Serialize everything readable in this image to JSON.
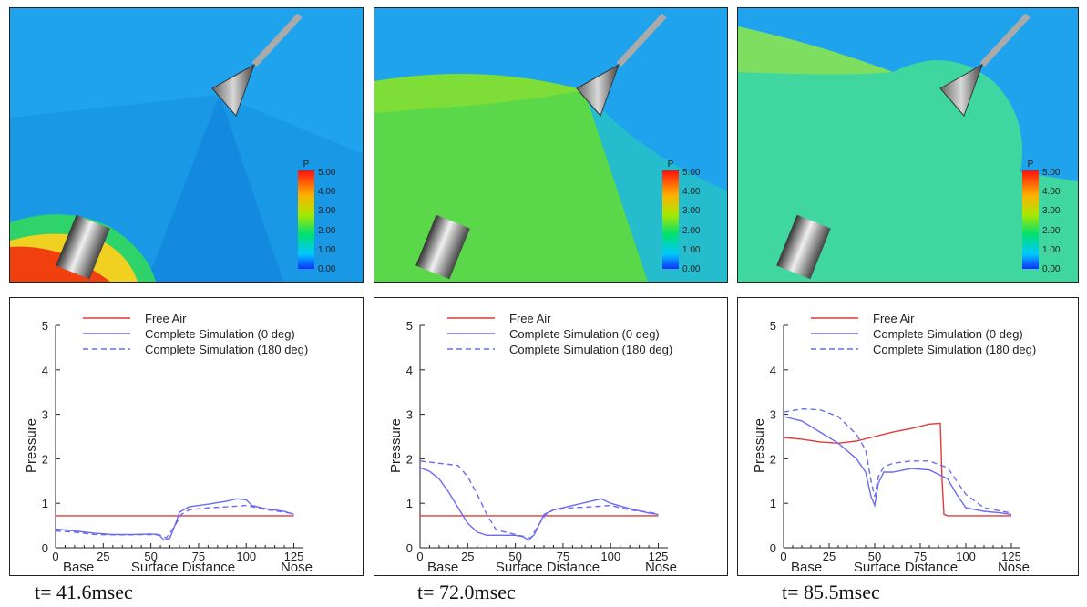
{
  "contours": [
    {
      "colorbar_title": "P",
      "colorbar_ticks": [
        "5.00",
        "4.00",
        "3.00",
        "2.00",
        "1.00",
        "0.00"
      ]
    },
    {
      "colorbar_title": "P",
      "colorbar_ticks": [
        "5.00",
        "4.00",
        "3.00",
        "2.00",
        "1.00",
        "0.00"
      ]
    },
    {
      "colorbar_title": "P",
      "colorbar_ticks": [
        "5.00",
        "4.00",
        "3.00",
        "2.00",
        "1.00",
        "0.00"
      ]
    }
  ],
  "captions": [
    "t= 41.6msec",
    "t= 72.0msec",
    "t= 85.5msec"
  ],
  "colors": {
    "free_air": "#e03a3a",
    "simulation": "#6b6bf0"
  },
  "chart_data": [
    {
      "type": "line",
      "title": "",
      "xlabel": "Surface Distance",
      "ylabel": "Pressure",
      "xlim": [
        0,
        130
      ],
      "ylim": [
        0,
        5
      ],
      "xticks": [
        0,
        25,
        50,
        75,
        100,
        125
      ],
      "yticks": [
        0,
        1,
        2,
        3,
        4,
        5
      ],
      "x_end_labels": [
        "Base",
        "Nose"
      ],
      "legend": "top-left",
      "series": [
        {
          "name": "Free Air",
          "style": "solid",
          "x": [
            0,
            125
          ],
          "y": [
            0.72,
            0.72
          ]
        },
        {
          "name": "Complete Simulation (0 deg)",
          "style": "solid",
          "x": [
            0,
            10,
            20,
            30,
            40,
            50,
            54,
            57,
            60,
            63,
            65,
            70,
            80,
            90,
            95,
            100,
            103,
            110,
            120,
            125
          ],
          "y": [
            0.42,
            0.38,
            0.33,
            0.3,
            0.3,
            0.31,
            0.3,
            0.17,
            0.22,
            0.55,
            0.8,
            0.92,
            0.98,
            1.05,
            1.1,
            1.08,
            0.95,
            0.88,
            0.82,
            0.75
          ]
        },
        {
          "name": "Complete Simulation (180 deg)",
          "style": "dashed",
          "x": [
            0,
            10,
            20,
            30,
            40,
            50,
            55,
            58,
            62,
            66,
            70,
            80,
            90,
            100,
            110,
            120,
            125
          ],
          "y": [
            0.38,
            0.35,
            0.3,
            0.29,
            0.29,
            0.3,
            0.28,
            0.22,
            0.45,
            0.75,
            0.85,
            0.9,
            0.92,
            0.95,
            0.86,
            0.8,
            0.76
          ]
        }
      ]
    },
    {
      "type": "line",
      "title": "",
      "xlabel": "Surface Distance",
      "ylabel": "Pressure",
      "xlim": [
        0,
        130
      ],
      "ylim": [
        0,
        5
      ],
      "xticks": [
        0,
        25,
        50,
        75,
        100,
        125
      ],
      "yticks": [
        0,
        1,
        2,
        3,
        4,
        5
      ],
      "x_end_labels": [
        "Base",
        "Nose"
      ],
      "legend": "top-left",
      "series": [
        {
          "name": "Free Air",
          "style": "solid",
          "x": [
            0,
            125
          ],
          "y": [
            0.72,
            0.72
          ]
        },
        {
          "name": "Complete Simulation (0 deg)",
          "style": "solid",
          "x": [
            0,
            5,
            10,
            15,
            20,
            25,
            30,
            35,
            40,
            50,
            54,
            57,
            60,
            65,
            70,
            80,
            90,
            95,
            100,
            110,
            120,
            125
          ],
          "y": [
            1.8,
            1.72,
            1.55,
            1.25,
            0.9,
            0.55,
            0.35,
            0.28,
            0.28,
            0.28,
            0.25,
            0.17,
            0.3,
            0.75,
            0.85,
            0.95,
            1.05,
            1.1,
            1.0,
            0.88,
            0.78,
            0.75
          ]
        },
        {
          "name": "Complete Simulation (180 deg)",
          "style": "dashed",
          "x": [
            0,
            10,
            20,
            25,
            30,
            35,
            40,
            50,
            55,
            58,
            62,
            66,
            70,
            80,
            90,
            100,
            110,
            120,
            125
          ],
          "y": [
            1.95,
            1.9,
            1.85,
            1.6,
            1.2,
            0.75,
            0.4,
            0.3,
            0.25,
            0.22,
            0.5,
            0.75,
            0.85,
            0.9,
            0.92,
            0.95,
            0.85,
            0.8,
            0.76
          ]
        }
      ]
    },
    {
      "type": "line",
      "title": "",
      "xlabel": "Surface Distance",
      "ylabel": "Pressure",
      "xlim": [
        0,
        130
      ],
      "ylim": [
        0,
        5
      ],
      "xticks": [
        0,
        25,
        50,
        75,
        100,
        125
      ],
      "yticks": [
        0,
        1,
        2,
        3,
        4,
        5
      ],
      "x_end_labels": [
        "Base",
        "Nose"
      ],
      "legend": "top-left",
      "series": [
        {
          "name": "Free Air",
          "style": "solid",
          "x": [
            0,
            10,
            20,
            30,
            40,
            50,
            60,
            70,
            80,
            86,
            87,
            88,
            90,
            100,
            110,
            120,
            125
          ],
          "y": [
            2.48,
            2.44,
            2.38,
            2.35,
            2.4,
            2.5,
            2.6,
            2.68,
            2.78,
            2.8,
            1.5,
            0.75,
            0.72,
            0.72,
            0.72,
            0.72,
            0.72
          ]
        },
        {
          "name": "Complete Simulation (0 deg)",
          "style": "solid",
          "x": [
            0,
            10,
            20,
            30,
            40,
            45,
            48,
            50,
            52,
            55,
            60,
            70,
            80,
            90,
            95,
            100,
            110,
            120,
            125
          ],
          "y": [
            2.95,
            2.85,
            2.6,
            2.35,
            2.0,
            1.7,
            1.15,
            0.95,
            1.45,
            1.7,
            1.7,
            1.78,
            1.75,
            1.55,
            1.2,
            0.9,
            0.82,
            0.78,
            0.75
          ]
        },
        {
          "name": "Complete Simulation (180 deg)",
          "style": "dashed",
          "x": [
            0,
            10,
            20,
            30,
            40,
            45,
            48,
            50,
            52,
            55,
            60,
            70,
            80,
            90,
            100,
            110,
            120,
            125
          ],
          "y": [
            3.05,
            3.12,
            3.1,
            2.95,
            2.55,
            2.2,
            1.5,
            1.15,
            1.6,
            1.82,
            1.9,
            1.95,
            1.95,
            1.8,
            1.2,
            0.9,
            0.82,
            0.78
          ]
        }
      ]
    }
  ]
}
